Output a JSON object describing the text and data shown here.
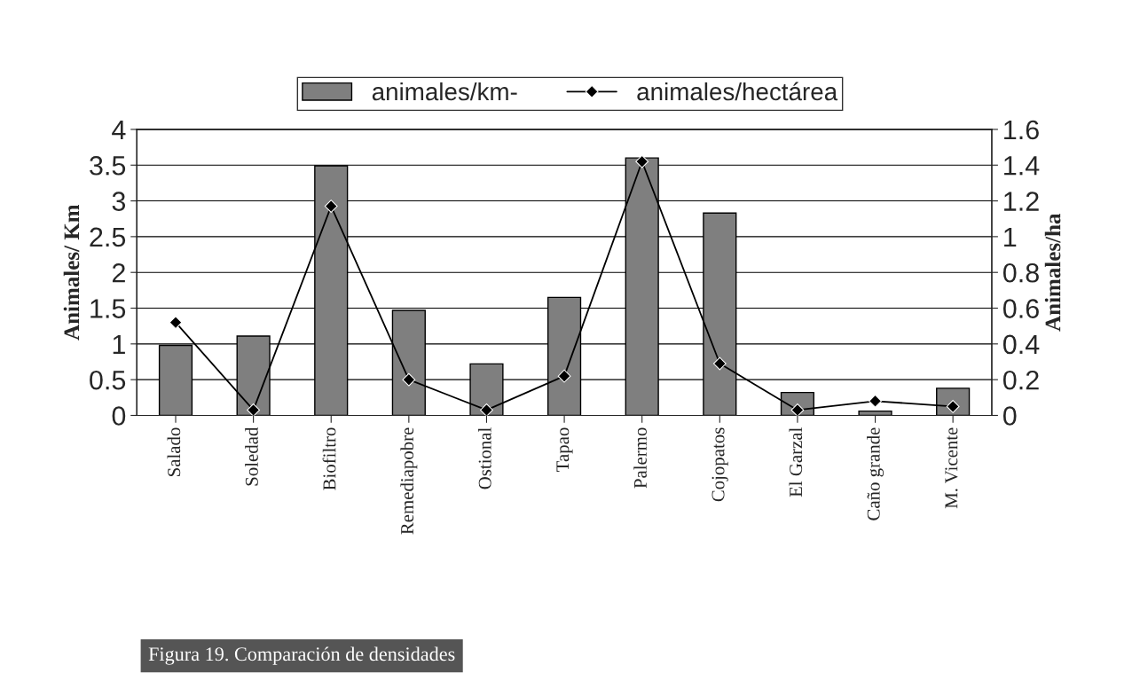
{
  "chart_data": {
    "type": "bar",
    "categories": [
      "Salado",
      "Soledad",
      "Biofiltro",
      "Remediapobre",
      "Ostional",
      "Tapao",
      "Palermo",
      "Cojopatos",
      "El Garzal",
      "Caño grande",
      "M. Vicente"
    ],
    "series": [
      {
        "name": "animales/km-",
        "color": "#7f7f7f",
        "values": [
          0.98,
          1.11,
          3.49,
          1.47,
          0.72,
          1.65,
          3.6,
          2.83,
          0.32,
          0.06,
          0.38
        ]
      },
      {
        "name": "animales/hectárea",
        "type": "line",
        "axis": "y2",
        "color": "#000000",
        "marker": "diamond",
        "values": [
          0.52,
          0.03,
          1.17,
          0.2,
          0.03,
          0.22,
          1.42,
          0.29,
          0.03,
          0.08,
          0.05
        ]
      }
    ],
    "ylabel": "Animales/ Km",
    "y2label": "Animales/ha",
    "ylim": [
      0,
      4
    ],
    "yticks": [
      0,
      0.5,
      1,
      1.5,
      2,
      2.5,
      3,
      3.5,
      4
    ],
    "y2lim": [
      0,
      1.6
    ],
    "y2ticks": [
      0,
      0.2,
      0.4,
      0.6,
      0.8,
      1,
      1.2,
      1.4,
      1.6
    ],
    "grid": "y",
    "legend": "top",
    "annotations": [
      "Figura 19. Comparación de densidades"
    ]
  }
}
